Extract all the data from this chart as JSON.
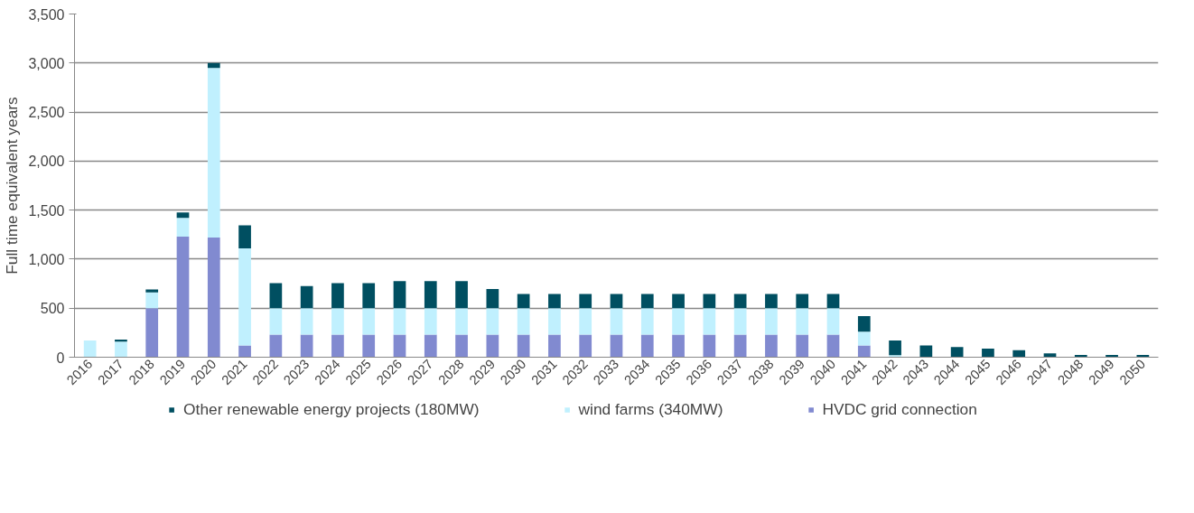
{
  "chart_data": {
    "type": "bar",
    "stacked": true,
    "ylabel": "Full time equivalent years",
    "categories": [
      "2016",
      "2017",
      "2018",
      "2019",
      "2020",
      "2021",
      "2022",
      "2023",
      "2024",
      "2025",
      "2026",
      "2027",
      "2028",
      "2029",
      "2030",
      "2031",
      "2032",
      "2033",
      "2034",
      "2035",
      "2036",
      "2037",
      "2038",
      "2039",
      "2040",
      "2041",
      "2042",
      "2043",
      "2044",
      "2045",
      "2046",
      "2047",
      "2048",
      "2049",
      "2050"
    ],
    "series": [
      {
        "name": "HVDC grid connection",
        "color": "#818ad0",
        "values": [
          null,
          null,
          500,
          1230,
          1220,
          120,
          230,
          230,
          230,
          230,
          230,
          230,
          230,
          230,
          230,
          230,
          230,
          230,
          230,
          230,
          230,
          230,
          230,
          230,
          230,
          120,
          null,
          null,
          null,
          null,
          null,
          null,
          null,
          null,
          null
        ]
      },
      {
        "name": "wind farms (340MW)",
        "color": "#c0f0fe",
        "values": [
          170,
          160,
          160,
          190,
          1730,
          990,
          270,
          270,
          270,
          270,
          270,
          270,
          270,
          270,
          270,
          270,
          270,
          270,
          270,
          270,
          270,
          270,
          270,
          270,
          270,
          140,
          20,
          null,
          null,
          null,
          null,
          null,
          null,
          null,
          null
        ]
      },
      {
        "name": "Other renewable energy projects (180MW)",
        "color": "#004f61",
        "values": [
          null,
          20,
          30,
          55,
          50,
          235,
          255,
          225,
          255,
          255,
          275,
          275,
          275,
          195,
          145,
          145,
          145,
          145,
          145,
          145,
          145,
          145,
          145,
          145,
          145,
          160,
          150,
          120,
          104,
          88,
          72,
          40,
          24,
          24,
          24
        ]
      }
    ],
    "ylim": [
      0,
      3500
    ],
    "yticks": [
      0,
      500,
      {
        "value": 1000,
        "label": "1,000"
      },
      {
        "value": 1500,
        "label": "1,500"
      },
      {
        "value": 2000,
        "label": "2,000"
      },
      {
        "value": 2500,
        "label": "2,500"
      },
      {
        "value": 3000,
        "label": "3,000"
      },
      {
        "value": 3500,
        "label": "3,500"
      }
    ],
    "grid": "y",
    "legend": "bottom"
  }
}
